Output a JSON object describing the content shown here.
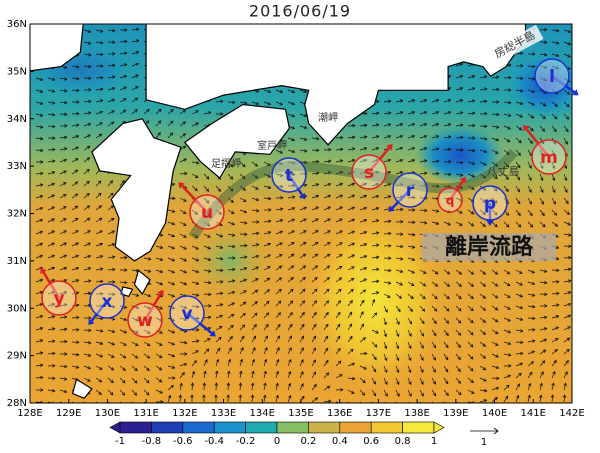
{
  "title": "2016/06/19",
  "lat_labels": [
    "36N",
    "35N",
    "34N",
    "33N",
    "32N",
    "31N",
    "30N",
    "29N",
    "28N"
  ],
  "lon_labels": [
    "128E",
    "129E",
    "130E",
    "131E",
    "132E",
    "133E",
    "134E",
    "135E",
    "136E",
    "137E",
    "138E",
    "139E",
    "140E",
    "141E",
    "142E"
  ],
  "colorbar_labels": [
    "-1",
    "-0.8",
    "-0.6",
    "-0.4",
    "-0.2",
    "0",
    "0.2",
    "0.4",
    "0.6",
    "0.8",
    "1"
  ],
  "vector_scale_label": "1",
  "markers": [
    {
      "label": "l",
      "color": "blue"
    },
    {
      "label": "m",
      "color": "red"
    },
    {
      "label": "p",
      "color": "blue"
    },
    {
      "label": "q",
      "color": "red"
    },
    {
      "label": "r",
      "color": "blue"
    },
    {
      "label": "s",
      "color": "red"
    },
    {
      "label": "t",
      "color": "blue"
    },
    {
      "label": "u",
      "color": "red"
    },
    {
      "label": "v",
      "color": "blue"
    },
    {
      "label": "w",
      "color": "red"
    },
    {
      "label": "x",
      "color": "blue"
    },
    {
      "label": "y",
      "color": "red"
    }
  ],
  "place_labels": [
    "房総半島",
    "八丈島",
    "室戸岬",
    "潮岬",
    "足摺岬"
  ],
  "route_label": "離岸流路"
}
